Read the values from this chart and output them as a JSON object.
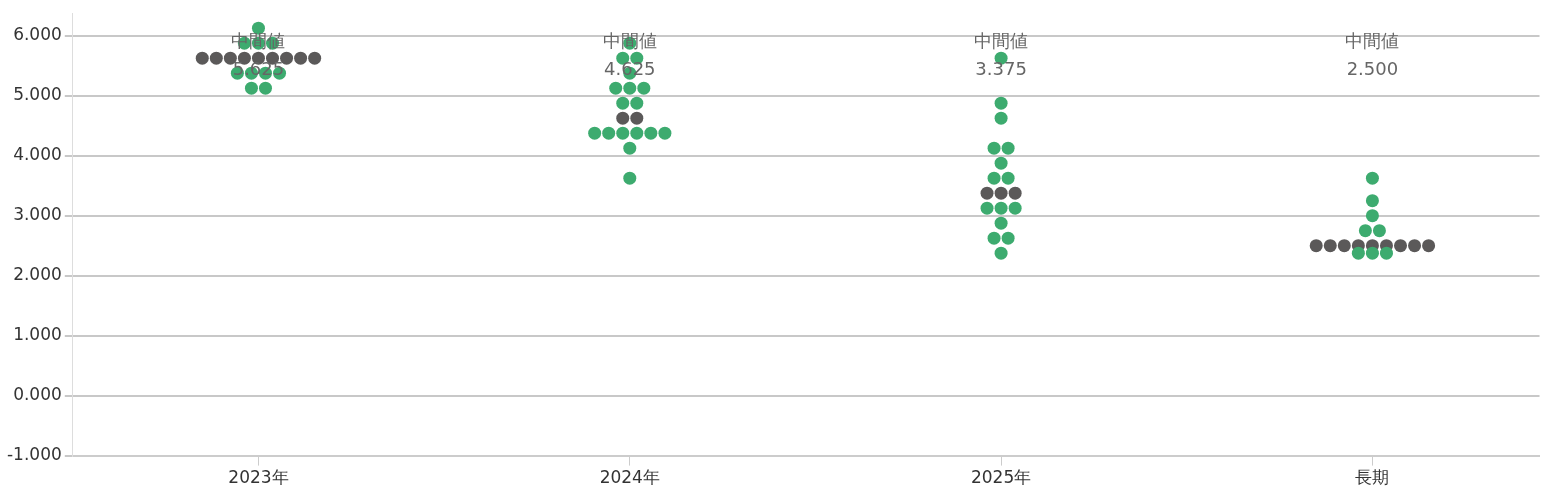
{
  "chart_data": {
    "type": "scatter",
    "categories": [
      "2023年",
      "2024年",
      "2025年",
      "長期"
    ],
    "series": [
      {
        "color": "#3dab6f",
        "x": [
          "2023年",
          "2023年",
          "2023年",
          "2023年",
          "2023年",
          "2023年",
          "2023年",
          "2023年",
          "2023年",
          "2023年",
          "2024年",
          "2024年",
          "2024年",
          "2024年",
          "2024年",
          "2024年",
          "2024年",
          "2024年",
          "2024年",
          "2024年",
          "2024年",
          "2024年",
          "2024年",
          "2024年",
          "2024年",
          "2024年",
          "2024年",
          "2025年",
          "2025年",
          "2025年",
          "2025年",
          "2025年",
          "2025年",
          "2025年",
          "2025年",
          "2025年",
          "2025年",
          "2025年",
          "2025年",
          "2025年",
          "2025年",
          "2025年",
          "長期",
          "長期",
          "長期",
          "長期",
          "長期",
          "長期",
          "長期",
          "長期"
        ],
        "values": [
          6.125,
          5.875,
          5.875,
          5.875,
          5.375,
          5.375,
          5.375,
          5.375,
          5.125,
          5.125,
          5.875,
          5.625,
          5.625,
          5.375,
          5.125,
          5.125,
          5.125,
          4.875,
          4.875,
          4.375,
          4.375,
          4.375,
          4.375,
          4.375,
          4.375,
          4.125,
          3.625,
          5.625,
          4.875,
          4.625,
          4.125,
          4.125,
          3.875,
          3.625,
          3.625,
          3.125,
          3.125,
          3.125,
          2.875,
          2.625,
          2.625,
          2.375,
          3.625,
          3.25,
          3.0,
          2.75,
          2.75,
          2.375,
          2.375,
          2.375
        ]
      },
      {
        "color": "#5b5959",
        "x": [
          "2023年",
          "2023年",
          "2023年",
          "2023年",
          "2023年",
          "2023年",
          "2023年",
          "2023年",
          "2023年",
          "2024年",
          "2024年",
          "2025年",
          "2025年",
          "2025年",
          "長期",
          "長期",
          "長期",
          "長期",
          "長期",
          "長期",
          "長期",
          "長期",
          "長期"
        ],
        "values": [
          5.625,
          5.625,
          5.625,
          5.625,
          5.625,
          5.625,
          5.625,
          5.625,
          5.625,
          4.625,
          4.625,
          3.375,
          3.375,
          3.375,
          2.5,
          2.5,
          2.5,
          2.5,
          2.5,
          2.5,
          2.5,
          2.5,
          2.5
        ]
      }
    ],
    "annotations": [
      "中間値\n5.625",
      "中間値\n4.625",
      "中間値\n3.375",
      "中間値\n2.500"
    ],
    "ylim": [
      -1,
      6.375
    ],
    "yticks": [
      {
        "value": -1,
        "label": "-1.000"
      },
      {
        "value": 0,
        "label": "0.000"
      },
      {
        "value": 1,
        "label": "1.000"
      },
      {
        "value": 2,
        "label": "2.000"
      },
      {
        "value": 3,
        "label": "3.000"
      },
      {
        "value": 4,
        "label": "4.000"
      },
      {
        "value": 5,
        "label": "5.000"
      },
      {
        "value": 6,
        "label": "6.000"
      }
    ],
    "grid": "y",
    "marker": "circle",
    "legend": false
  }
}
